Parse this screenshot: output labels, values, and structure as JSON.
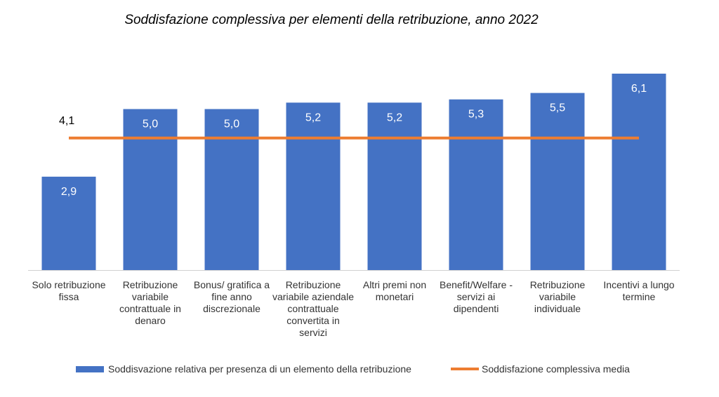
{
  "chart_data": {
    "type": "bar",
    "title": "Soddisfazione complessiva per elementi della retribuzione, anno 2022",
    "categories": [
      "Solo retribuzione fissa",
      "Retribuzione variabile contrattuale in denaro",
      "Bonus/ gratifica a fine anno discrezionale",
      "Retribuzione variabile aziendale contrattuale convertita in servizi",
      "Altri premi non monetari",
      "Benefit/Welfare - servizi ai dipendenti",
      "Retribuzione variabile individuale",
      "Incentivi a lungo termine"
    ],
    "series": [
      {
        "name": "Soddisvazione relativa per presenza di un elemento della retribuzione",
        "type": "bar",
        "values": [
          2.9,
          5.0,
          5.0,
          5.2,
          5.2,
          5.3,
          5.5,
          6.1
        ],
        "labels": [
          "2,9",
          "5,0",
          "5,0",
          "5,2",
          "5,2",
          "5,3",
          "5,5",
          "6,1"
        ],
        "color": "#4472C4"
      },
      {
        "name": "Soddisfazione complessiva media",
        "type": "line",
        "value": 4.1,
        "label": "4,1",
        "color": "#ED7D31"
      }
    ],
    "ylim": [
      0,
      6.1
    ],
    "grid": false,
    "legend_position": "bottom"
  }
}
